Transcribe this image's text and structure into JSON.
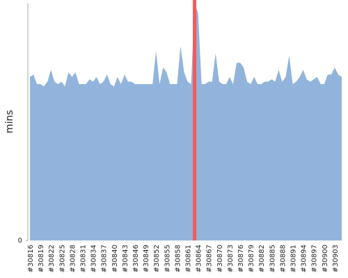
{
  "chart_data": {
    "type": "area",
    "y_label": "mins",
    "categories": [
      "#30816",
      null,
      null,
      "#30819",
      null,
      null,
      "#30822",
      null,
      null,
      "#30825",
      null,
      null,
      "#30828",
      null,
      null,
      "#30831",
      null,
      null,
      "#30834",
      null,
      null,
      "#30837",
      null,
      null,
      "#30840",
      null,
      null,
      "#30843",
      null,
      null,
      "#30846",
      null,
      null,
      "#30849",
      null,
      null,
      "#30852",
      null,
      null,
      "#30855",
      null,
      null,
      "#30858",
      null,
      null,
      "#30861",
      null,
      null,
      "#30864",
      null,
      null,
      "#30867",
      null,
      null,
      "#30870",
      null,
      null,
      "#30873",
      null,
      null,
      "#30876",
      null,
      null,
      "#30879",
      null,
      null,
      "#30882",
      null,
      null,
      "#30885",
      null,
      null,
      "#30888",
      null,
      null,
      "#30891",
      null,
      null,
      "#30894",
      null,
      null,
      "#30897",
      null,
      null,
      "#30900",
      null,
      null,
      "#30903",
      null,
      null
    ],
    "values": [
      69,
      70,
      66,
      66,
      65,
      67,
      72,
      67,
      66,
      67,
      65,
      71,
      69,
      71,
      66,
      66,
      66,
      68,
      67,
      69,
      66,
      67,
      70,
      66,
      65,
      69,
      66,
      70,
      67,
      67,
      66,
      66,
      66,
      66,
      66,
      66,
      80,
      66,
      73,
      71,
      66,
      66,
      66,
      82,
      71,
      67,
      66,
      100,
      96,
      66,
      66,
      67,
      67,
      79,
      67,
      66,
      66,
      69,
      66,
      75,
      75,
      73,
      67,
      66,
      69,
      66,
      66,
      67,
      67,
      68,
      67,
      72,
      67,
      69,
      78,
      66,
      67,
      69,
      72,
      68,
      67,
      68,
      69,
      66,
      66,
      70,
      70,
      73,
      70,
      69
    ],
    "color": "#92b4dc",
    "highlight": {
      "index": 47,
      "color": "#f55a5a"
    },
    "ylim": [
      0,
      100
    ],
    "yticks": [
      0
    ]
  }
}
